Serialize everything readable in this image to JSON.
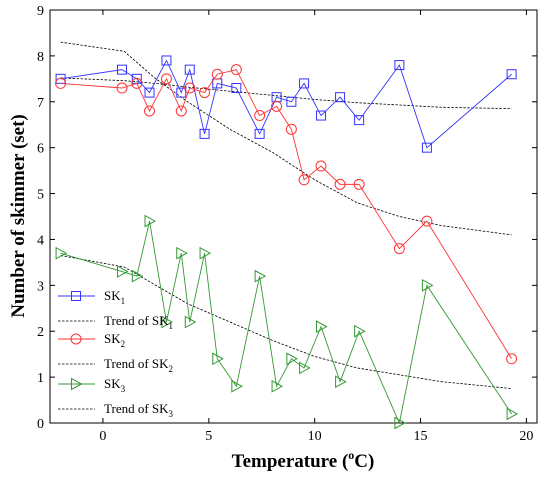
{
  "chart_data": {
    "type": "line",
    "xlabel_main": "Temperature (",
    "xlabel_sup": "o",
    "xlabel_tail": "C)",
    "ylabel": "Number of skimmer (set)",
    "xlim": [
      -2.5,
      20.5
    ],
    "ylim": [
      0,
      9
    ],
    "xticks": [
      0,
      5,
      10,
      15,
      20
    ],
    "yticks": [
      0,
      1,
      2,
      3,
      4,
      5,
      6,
      7,
      8,
      9
    ],
    "legend_position": "left",
    "series": [
      {
        "name_main": "SK",
        "name_sub": "1",
        "marker": "square",
        "color": "#3333ff",
        "x": [
          -2.0,
          0.9,
          1.6,
          2.2,
          3.0,
          3.7,
          4.1,
          4.8,
          5.4,
          6.3,
          7.4,
          8.2,
          8.9,
          9.5,
          10.3,
          11.2,
          12.1,
          14.0,
          15.3,
          19.3
        ],
        "y": [
          7.5,
          7.7,
          7.5,
          7.2,
          7.9,
          7.2,
          7.7,
          6.3,
          7.4,
          7.3,
          6.3,
          7.1,
          7.0,
          7.4,
          6.7,
          7.1,
          6.6,
          7.8,
          6.0,
          7.6
        ]
      },
      {
        "name_main": "Trend of SK",
        "name_sub": "1",
        "marker": "trend",
        "color": "#000000",
        "x": [
          -2.0,
          1.0,
          2.5,
          4.0,
          6.0,
          8.0,
          10.0,
          12.0,
          14.0,
          16.0,
          19.3
        ],
        "y": [
          7.52,
          7.46,
          7.4,
          7.32,
          7.23,
          7.14,
          7.05,
          6.98,
          6.93,
          6.88,
          6.85
        ]
      },
      {
        "name_main": "SK",
        "name_sub": "2",
        "marker": "circle",
        "color": "#ff3333",
        "x": [
          -2.0,
          0.9,
          1.6,
          2.2,
          3.0,
          3.7,
          4.1,
          4.8,
          5.4,
          6.3,
          7.4,
          8.2,
          8.9,
          9.5,
          10.3,
          11.2,
          12.1,
          14.0,
          15.3,
          19.3
        ],
        "y": [
          7.4,
          7.3,
          7.4,
          6.8,
          7.5,
          6.8,
          7.3,
          7.2,
          7.6,
          7.7,
          6.7,
          6.9,
          6.4,
          5.3,
          5.6,
          5.2,
          5.2,
          3.8,
          4.4,
          1.4
        ]
      },
      {
        "name_main": "Trend of SK",
        "name_sub": "2",
        "marker": "trend",
        "color": "#000000",
        "x": [
          -2.0,
          1.0,
          2.5,
          4.0,
          6.0,
          8.0,
          10.0,
          12.0,
          14.0,
          16.0,
          19.3
        ],
        "y": [
          8.3,
          8.1,
          7.5,
          7.0,
          6.4,
          5.9,
          5.3,
          4.8,
          4.5,
          4.3,
          4.1
        ]
      },
      {
        "name_main": "SK",
        "name_sub": "3",
        "marker": "triangle",
        "color": "#339933",
        "x": [
          -2.0,
          0.9,
          1.6,
          2.2,
          3.0,
          3.7,
          4.1,
          4.8,
          5.4,
          6.3,
          7.4,
          8.2,
          8.9,
          9.5,
          10.3,
          11.2,
          12.1,
          14.0,
          15.3,
          19.3
        ],
        "y": [
          3.7,
          3.3,
          3.2,
          4.4,
          2.2,
          3.7,
          2.2,
          3.7,
          1.4,
          0.8,
          3.2,
          0.8,
          1.4,
          1.2,
          2.1,
          0.9,
          2.0,
          0.0,
          3.0,
          0.2
        ]
      },
      {
        "name_main": "Trend of SK",
        "name_sub": "3",
        "marker": "trend",
        "color": "#000000",
        "x": [
          -2.0,
          1.0,
          2.5,
          4.0,
          6.0,
          8.0,
          10.0,
          12.0,
          14.0,
          16.0,
          19.3
        ],
        "y": [
          3.65,
          3.4,
          3.0,
          2.6,
          2.2,
          1.8,
          1.45,
          1.2,
          1.05,
          0.9,
          0.75
        ]
      }
    ]
  }
}
